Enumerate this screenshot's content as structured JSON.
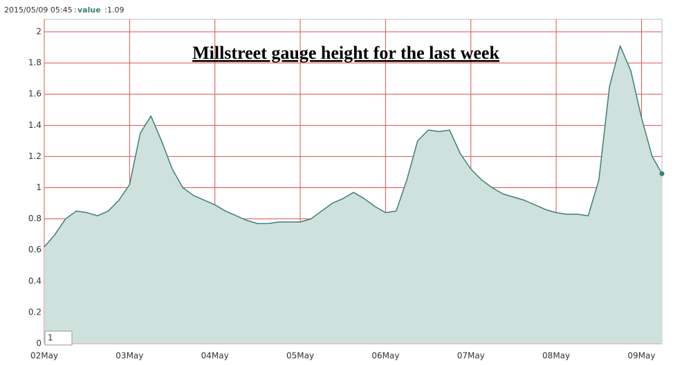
{
  "chart_data": {
    "type": "area",
    "title": "Millstreet gauge height for the last week",
    "hover_label": "value",
    "x": [
      "2015/05/02 00:00",
      "2015/05/02 03:00",
      "2015/05/02 06:00",
      "2015/05/02 09:00",
      "2015/05/02 12:00",
      "2015/05/02 15:00",
      "2015/05/02 18:00",
      "2015/05/02 21:00",
      "2015/05/03 00:00",
      "2015/05/03 03:00",
      "2015/05/03 06:00",
      "2015/05/03 09:00",
      "2015/05/03 12:00",
      "2015/05/03 15:00",
      "2015/05/03 18:00",
      "2015/05/03 21:00",
      "2015/05/04 00:00",
      "2015/05/04 03:00",
      "2015/05/04 06:00",
      "2015/05/04 09:00",
      "2015/05/04 12:00",
      "2015/05/04 15:00",
      "2015/05/04 18:00",
      "2015/05/04 21:00",
      "2015/05/05 00:00",
      "2015/05/05 03:00",
      "2015/05/05 06:00",
      "2015/05/05 09:00",
      "2015/05/05 12:00",
      "2015/05/05 15:00",
      "2015/05/05 18:00",
      "2015/05/05 21:00",
      "2015/05/06 00:00",
      "2015/05/06 03:00",
      "2015/05/06 06:00",
      "2015/05/06 09:00",
      "2015/05/06 12:00",
      "2015/05/06 15:00",
      "2015/05/06 18:00",
      "2015/05/06 21:00",
      "2015/05/07 00:00",
      "2015/05/07 03:00",
      "2015/05/07 06:00",
      "2015/05/07 09:00",
      "2015/05/07 12:00",
      "2015/05/07 15:00",
      "2015/05/07 18:00",
      "2015/05/07 21:00",
      "2015/05/08 00:00",
      "2015/05/08 03:00",
      "2015/05/08 06:00",
      "2015/05/08 09:00",
      "2015/05/08 12:00",
      "2015/05/08 15:00",
      "2015/05/08 18:00",
      "2015/05/08 21:00",
      "2015/05/09 00:00",
      "2015/05/09 03:00",
      "2015/05/09 05:45"
    ],
    "series": [
      {
        "name": "1",
        "color": "#3d7f78",
        "fill": "#cfe1dc",
        "values": [
          0.62,
          0.7,
          0.8,
          0.85,
          0.84,
          0.82,
          0.85,
          0.92,
          1.02,
          1.35,
          1.46,
          1.3,
          1.12,
          1.0,
          0.95,
          0.92,
          0.89,
          0.85,
          0.82,
          0.79,
          0.77,
          0.77,
          0.78,
          0.78,
          0.78,
          0.8,
          0.85,
          0.9,
          0.93,
          0.97,
          0.93,
          0.88,
          0.84,
          0.85,
          1.05,
          1.3,
          1.37,
          1.36,
          1.37,
          1.22,
          1.12,
          1.05,
          1.0,
          0.96,
          0.94,
          0.92,
          0.89,
          0.86,
          0.84,
          0.83,
          0.83,
          0.82,
          1.05,
          1.65,
          1.91,
          1.75,
          1.45,
          1.2,
          1.09
        ]
      }
    ],
    "xlim": [
      "2015/05/02 00:00",
      "2015/05/09 05:45"
    ],
    "xticks": [
      {
        "value": "2015/05/02 00:00",
        "label": "02May"
      },
      {
        "value": "2015/05/03 00:00",
        "label": "03May"
      },
      {
        "value": "2015/05/04 00:00",
        "label": "04May"
      },
      {
        "value": "2015/05/05 00:00",
        "label": "05May"
      },
      {
        "value": "2015/05/06 00:00",
        "label": "06May"
      },
      {
        "value": "2015/05/07 00:00",
        "label": "07May"
      },
      {
        "value": "2015/05/08 00:00",
        "label": "08May"
      },
      {
        "value": "2015/05/09 00:00",
        "label": "09May"
      }
    ],
    "ylim": [
      0,
      2.08
    ],
    "yticks": [
      0,
      0.2,
      0.4,
      0.6,
      0.8,
      1,
      1.2,
      1.4,
      1.6,
      1.8,
      2
    ],
    "grid": true,
    "grid_color": "#d9534f"
  }
}
